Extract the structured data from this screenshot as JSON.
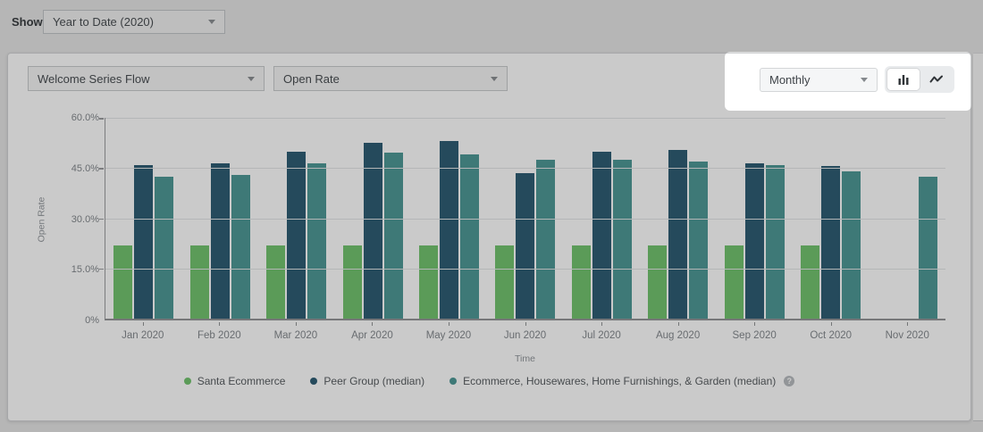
{
  "toolbar": {
    "show_label": "Show:",
    "period_dropdown": {
      "value": "Year to Date (2020)"
    }
  },
  "card": {
    "flow_dropdown": {
      "value": "Welcome Series Flow"
    },
    "metric_dropdown": {
      "value": "Open Rate"
    },
    "interval_dropdown": {
      "value": "Monthly"
    },
    "chart_type_toggle": {
      "selected": "bar",
      "options": [
        "bar",
        "line"
      ]
    }
  },
  "icons": {
    "help_glyph": "?"
  },
  "chart_data": {
    "type": "bar",
    "title": "",
    "xlabel": "Time",
    "ylabel": "Open Rate",
    "ylim": [
      0,
      60
    ],
    "grid": true,
    "legend_position": "bottom",
    "yticks": [
      {
        "value": 0,
        "label": "0%"
      },
      {
        "value": 15,
        "label": "15.0%"
      },
      {
        "value": 30,
        "label": "30.0%"
      },
      {
        "value": 45,
        "label": "45.0%"
      },
      {
        "value": 60,
        "label": "60.0%"
      }
    ],
    "categories": [
      "Jan 2020",
      "Feb 2020",
      "Mar 2020",
      "Apr 2020",
      "May 2020",
      "Jun 2020",
      "Jul 2020",
      "Aug 2020",
      "Sep 2020",
      "Oct 2020",
      "Nov 2020"
    ],
    "series": [
      {
        "name": "Santa Ecommerce",
        "color": "#6bc167",
        "values": [
          22,
          22,
          22,
          22,
          22,
          22,
          22,
          22,
          22,
          22,
          null
        ]
      },
      {
        "name": "Peer Group (median)",
        "color": "#23556d",
        "values": [
          46,
          46.5,
          50,
          52.5,
          53,
          43.5,
          50,
          50.5,
          46.5,
          45.5,
          null
        ]
      },
      {
        "name": "Ecommerce, Housewares, Home Furnishings, & Garden (median)",
        "color": "#449391",
        "values": [
          42.5,
          43,
          46.5,
          49.5,
          49,
          47.5,
          47.5,
          47,
          46,
          44,
          42.5
        ],
        "has_help_icon": true
      }
    ]
  }
}
